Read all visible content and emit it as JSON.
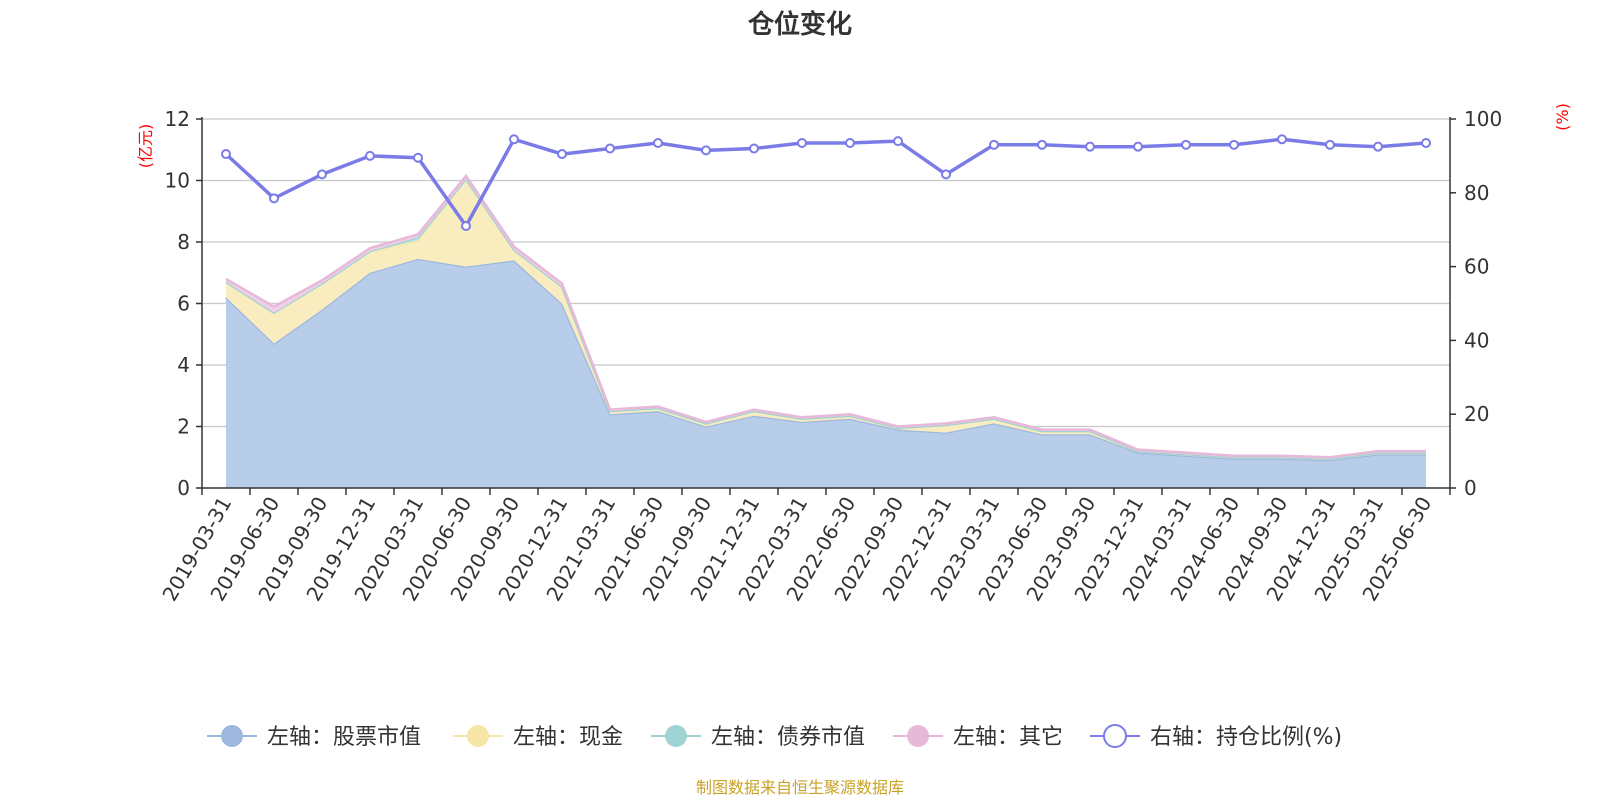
{
  "chart_data": {
    "type": "area",
    "title": "仓位变化",
    "left_axis_unit": "(亿元)",
    "right_axis_unit": "(%)",
    "y_left": {
      "min": 0,
      "max": 12,
      "ticks": [
        0,
        2,
        4,
        6,
        8,
        10,
        12
      ]
    },
    "y_right": {
      "min": 0,
      "max": 100,
      "ticks": [
        0,
        20,
        40,
        60,
        80,
        100
      ]
    },
    "grid": true,
    "legend_position": "bottom",
    "categories": [
      "2019-03-31",
      "2019-06-30",
      "2019-09-30",
      "2019-12-31",
      "2020-03-31",
      "2020-06-30",
      "2020-09-30",
      "2020-12-31",
      "2021-03-31",
      "2021-06-30",
      "2021-09-30",
      "2021-12-31",
      "2022-03-31",
      "2022-06-30",
      "2022-09-30",
      "2022-12-31",
      "2023-03-31",
      "2023-06-30",
      "2023-09-30",
      "2023-12-31",
      "2024-03-31",
      "2024-06-30",
      "2024-09-30",
      "2024-12-31",
      "2025-03-31",
      "2025-06-30"
    ],
    "series": [
      {
        "name": "左轴：股票市值",
        "axis": "left",
        "kind": "stacked-area",
        "color": "#9db8e0",
        "fill": "#b8cde9",
        "values": [
          6.2,
          4.7,
          5.8,
          7.0,
          7.45,
          7.2,
          7.4,
          6.0,
          2.4,
          2.5,
          2.0,
          2.35,
          2.15,
          2.25,
          1.9,
          1.8,
          2.1,
          1.75,
          1.75,
          1.15,
          1.05,
          0.95,
          0.95,
          0.9,
          1.1,
          1.1
        ]
      },
      {
        "name": "左轴：现金",
        "axis": "left",
        "kind": "stacked-area",
        "color": "#f5e6a8",
        "fill": "#f9edbf",
        "values": [
          0.5,
          1.0,
          0.85,
          0.7,
          0.6,
          2.85,
          0.35,
          0.55,
          0.1,
          0.1,
          0.1,
          0.15,
          0.1,
          0.1,
          0.05,
          0.25,
          0.15,
          0.1,
          0.1,
          0.05,
          0.05,
          0.05,
          0.05,
          0.05,
          0.05,
          0.05
        ]
      },
      {
        "name": "左轴：债券市值",
        "axis": "left",
        "kind": "stacked-area",
        "color": "#9fd3d3",
        "fill": "#c4e6e6",
        "values": [
          0,
          0,
          0,
          0,
          0.1,
          0,
          0,
          0,
          0,
          0,
          0,
          0,
          0,
          0,
          0,
          0,
          0,
          0,
          0,
          0,
          0,
          0,
          0,
          0,
          0,
          0
        ]
      },
      {
        "name": "左轴：其它",
        "axis": "left",
        "kind": "stacked-area",
        "color": "#e8b8d8",
        "fill": "#f0d0e6",
        "values": [
          0.1,
          0.2,
          0.1,
          0.1,
          0.1,
          0.1,
          0.1,
          0.1,
          0.05,
          0.05,
          0.05,
          0.05,
          0.05,
          0.05,
          0.05,
          0.05,
          0.05,
          0.05,
          0.05,
          0.05,
          0.05,
          0.05,
          0.05,
          0.05,
          0.05,
          0.05
        ]
      },
      {
        "name": "右轴：持仓比例(%)",
        "axis": "right",
        "kind": "line",
        "color": "#7b7be8",
        "values": [
          90.5,
          78.5,
          85.0,
          90.0,
          89.5,
          71.0,
          94.5,
          90.5,
          92.0,
          93.5,
          91.5,
          92.0,
          93.5,
          93.5,
          94.0,
          85.0,
          93.0,
          93.0,
          92.5,
          92.5,
          93.0,
          93.0,
          94.5,
          93.0,
          92.5,
          93.5
        ]
      }
    ],
    "source": "制图数据来自恒生聚源数据库"
  }
}
